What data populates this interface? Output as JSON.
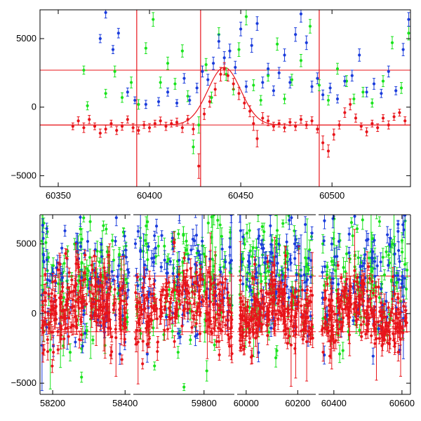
{
  "chart_data": [
    {
      "type": "scatter",
      "panel": "upper",
      "title": "",
      "xlabel": "",
      "ylabel": "",
      "xlim": [
        60340,
        60543
      ],
      "ylim": [
        -5800,
        7100
      ],
      "x_ticks": [
        60350,
        60400,
        60450,
        60500
      ],
      "y_ticks": [
        -5000,
        0,
        5000
      ],
      "grid": false,
      "hlines": [
        2700,
        -1300
      ],
      "vlines": [
        60393,
        60428,
        60493
      ],
      "series": [
        {
          "color": "#e8141a",
          "points": [
            [
              60358,
              -1400,
              250
            ],
            [
              60361,
              -1000,
              300
            ],
            [
              60364,
              -1500,
              350
            ],
            [
              60367,
              -900,
              300
            ],
            [
              60370,
              -1400,
              250
            ],
            [
              60373,
              -1900,
              300
            ],
            [
              60376,
              -1600,
              280
            ],
            [
              60379,
              -1200,
              250
            ],
            [
              60382,
              -1700,
              300
            ],
            [
              60385,
              -1400,
              280
            ],
            [
              60388,
              -900,
              260
            ],
            [
              60391,
              -1500,
              300
            ],
            [
              60394,
              -1700,
              260
            ],
            [
              60397,
              -1300,
              250
            ],
            [
              60400,
              -1500,
              300
            ],
            [
              60403,
              -1200,
              250
            ],
            [
              60406,
              -1000,
              280
            ],
            [
              60409,
              -1400,
              300
            ],
            [
              60412,
              -1200,
              250
            ],
            [
              60415,
              -1100,
              300
            ],
            [
              60418,
              -1500,
              350
            ],
            [
              60421,
              -900,
              300
            ],
            [
              60424,
              -1600,
              400
            ],
            [
              60427,
              -4300,
              900
            ],
            [
              60430,
              -500,
              400
            ],
            [
              60433,
              400,
              400
            ],
            [
              60436,
              1300,
              450
            ],
            [
              60439,
              2400,
              500
            ],
            [
              60441,
              2800,
              450
            ],
            [
              60443,
              2300,
              400
            ],
            [
              60446,
              1700,
              400
            ],
            [
              60449,
              1000,
              450
            ],
            [
              60452,
              300,
              400
            ],
            [
              60455,
              -300,
              400
            ],
            [
              60457,
              -1200,
              500
            ],
            [
              60459,
              -2300,
              600
            ],
            [
              60462,
              -800,
              400
            ],
            [
              60465,
              -1000,
              350
            ],
            [
              60468,
              -1400,
              300
            ],
            [
              60471,
              -1200,
              250
            ],
            [
              60474,
              -1500,
              300
            ],
            [
              60477,
              -1100,
              250
            ],
            [
              60480,
              -1400,
              300
            ],
            [
              60483,
              -900,
              280
            ],
            [
              60486,
              -1300,
              250
            ],
            [
              60489,
              -1000,
              300
            ],
            [
              60492,
              -1600,
              280
            ],
            [
              60495,
              -2600,
              500
            ],
            [
              60498,
              -3200,
              450
            ],
            [
              60501,
              -2000,
              400
            ],
            [
              60504,
              -1300,
              300
            ],
            [
              60507,
              -400,
              350
            ],
            [
              60510,
              200,
              400
            ],
            [
              60513,
              -800,
              300
            ],
            [
              60516,
              -1400,
              250
            ],
            [
              60519,
              -1800,
              300
            ],
            [
              60522,
              -1200,
              250
            ],
            [
              60525,
              -1500,
              280
            ],
            [
              60528,
              -800,
              250
            ],
            [
              60531,
              -1300,
              300
            ],
            [
              60534,
              -700,
              260
            ],
            [
              60537,
              -400,
              250
            ],
            [
              60540,
              -1000,
              300
            ]
          ]
        },
        {
          "color": "#1a3cdc",
          "points": [
            [
              60373,
              5000,
              300
            ],
            [
              60376,
              6900,
              400
            ],
            [
              60380,
              4200,
              300
            ],
            [
              60383,
              5400,
              350
            ],
            [
              60388,
              1100,
              300
            ],
            [
              60392,
              500,
              250
            ],
            [
              60398,
              200,
              300
            ],
            [
              60405,
              400,
              300
            ],
            [
              60410,
              1100,
              300
            ],
            [
              60415,
              300,
              250
            ],
            [
              60419,
              2100,
              350
            ],
            [
              60422,
              500,
              300
            ],
            [
              60426,
              1400,
              350
            ],
            [
              60429,
              2600,
              400
            ],
            [
              60432,
              2000,
              400
            ],
            [
              60435,
              3200,
              450
            ],
            [
              60438,
              4800,
              500
            ],
            [
              60441,
              3600,
              450
            ],
            [
              60444,
              4100,
              500
            ],
            [
              60447,
              2900,
              450
            ],
            [
              60450,
              5700,
              500
            ],
            [
              60453,
              1500,
              400
            ],
            [
              60456,
              4500,
              500
            ],
            [
              60459,
              6100,
              500
            ],
            [
              60462,
              1800,
              400
            ],
            [
              60465,
              2800,
              400
            ],
            [
              60468,
              1200,
              350
            ],
            [
              60471,
              2500,
              400
            ],
            [
              60474,
              3800,
              450
            ],
            [
              60477,
              1800,
              400
            ],
            [
              60480,
              5300,
              500
            ],
            [
              60483,
              6800,
              600
            ],
            [
              60486,
              4700,
              500
            ],
            [
              60489,
              1500,
              400
            ],
            [
              60492,
              2100,
              400
            ],
            [
              60495,
              900,
              350
            ],
            [
              60499,
              1400,
              350
            ],
            [
              60503,
              600,
              300
            ],
            [
              60507,
              1900,
              350
            ],
            [
              60511,
              2300,
              400
            ],
            [
              60515,
              3800,
              450
            ],
            [
              60519,
              1100,
              350
            ],
            [
              60523,
              1700,
              400
            ],
            [
              60527,
              1000,
              300
            ],
            [
              60531,
              2600,
              400
            ],
            [
              60535,
              1200,
              300
            ],
            [
              60539,
              4200,
              450
            ],
            [
              60542,
              6400,
              500
            ]
          ]
        },
        {
          "color": "#19e31c",
          "points": [
            [
              60364,
              2700,
              300
            ],
            [
              60366,
              100,
              300
            ],
            [
              60376,
              1000,
              300
            ],
            [
              60381,
              2600,
              400
            ],
            [
              60385,
              700,
              350
            ],
            [
              60390,
              1800,
              400
            ],
            [
              60394,
              200,
              350
            ],
            [
              60398,
              4300,
              400
            ],
            [
              60402,
              6400,
              500
            ],
            [
              60406,
              1800,
              400
            ],
            [
              60410,
              3200,
              450
            ],
            [
              60414,
              1700,
              400
            ],
            [
              60418,
              4100,
              450
            ],
            [
              60421,
              800,
              400
            ],
            [
              60424,
              -2900,
              500
            ],
            [
              60427,
              -1300,
              600
            ],
            [
              60431,
              3100,
              450
            ],
            [
              60434,
              700,
              400
            ],
            [
              60438,
              5300,
              500
            ],
            [
              60442,
              2400,
              450
            ],
            [
              60446,
              1300,
              400
            ],
            [
              60449,
              4200,
              500
            ],
            [
              60453,
              6600,
              600
            ],
            [
              60457,
              1600,
              400
            ],
            [
              60461,
              500,
              350
            ],
            [
              60465,
              2300,
              400
            ],
            [
              60470,
              4600,
              450
            ],
            [
              60474,
              600,
              350
            ],
            [
              60478,
              2000,
              400
            ],
            [
              60483,
              3400,
              450
            ],
            [
              60488,
              5900,
              500
            ],
            [
              60493,
              1600,
              400
            ],
            [
              60498,
              500,
              350
            ],
            [
              60503,
              2800,
              400
            ],
            [
              60508,
              1900,
              400
            ],
            [
              60512,
              600,
              350
            ],
            [
              60517,
              1100,
              350
            ],
            [
              60522,
              300,
              300
            ],
            [
              60528,
              1900,
              400
            ],
            [
              60533,
              4700,
              450
            ],
            [
              60538,
              1400,
              400
            ],
            [
              60542,
              5400,
              500
            ]
          ]
        }
      ],
      "fit_curve": {
        "baseline": -1300,
        "amplitude": 4200,
        "center": 60441,
        "width": 9
      }
    },
    {
      "type": "scatter",
      "panel": "lower",
      "title": "",
      "xlabel": "",
      "ylabel": "",
      "x_segments": [
        [
          58165,
          58415
        ],
        [
          59625,
          59875
        ],
        [
          59965,
          60270
        ],
        [
          60355,
          60625
        ]
      ],
      "x_ticks": [
        [
          58200,
          58400
        ],
        [
          59800
        ],
        [
          60000,
          60200
        ],
        [
          60400,
          60600
        ]
      ],
      "ylim": [
        -5800,
        7100
      ],
      "y_ticks": [
        -5000,
        0,
        5000
      ],
      "grid": false,
      "hlines": [
        2700,
        -1300
      ],
      "clusters": [
        {
          "segment": 0,
          "x_range": [
            58170,
            58410
          ],
          "center": 58300,
          "baseline": 0,
          "spread": 1300
        },
        {
          "segment": 1,
          "x_range": [
            59630,
            59870
          ],
          "center": 59750,
          "baseline": 0,
          "spread": 1300
        },
        {
          "segment": 2,
          "x_range": [
            59975,
            60260
          ],
          "center": 60110,
          "baseline": -500,
          "spread": 1200
        },
        {
          "segment": 3,
          "x_range": [
            60365,
            60615
          ],
          "center": 60460,
          "baseline": -700,
          "spread": 1200
        }
      ],
      "series_colors": [
        "#e8141a",
        "#1a3cdc",
        "#19e31c"
      ]
    }
  ]
}
